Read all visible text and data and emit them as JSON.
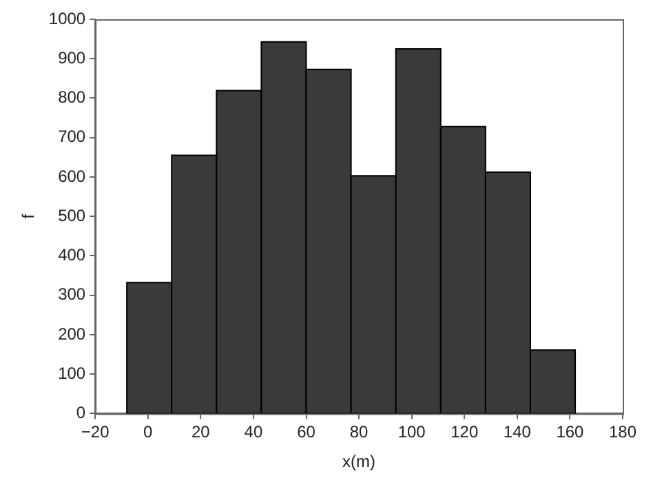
{
  "chart_data": {
    "type": "histogram",
    "xlabel": "x(m)",
    "ylabel": "f",
    "bins": [
      -8,
      9,
      26,
      43,
      60,
      77,
      94,
      111,
      128,
      145,
      162
    ],
    "values": [
      332,
      655,
      819,
      943,
      873,
      603,
      925,
      728,
      612,
      161
    ],
    "color": "#3a3a3a",
    "xlim": [
      -20,
      180
    ],
    "xticks": [
      -20,
      0,
      20,
      40,
      60,
      80,
      100,
      120,
      140,
      160,
      180
    ],
    "ylim": [
      0,
      1000
    ],
    "yticks": [
      0,
      100,
      200,
      300,
      400,
      500,
      600,
      700,
      800,
      900,
      1000
    ],
    "grid": false
  }
}
